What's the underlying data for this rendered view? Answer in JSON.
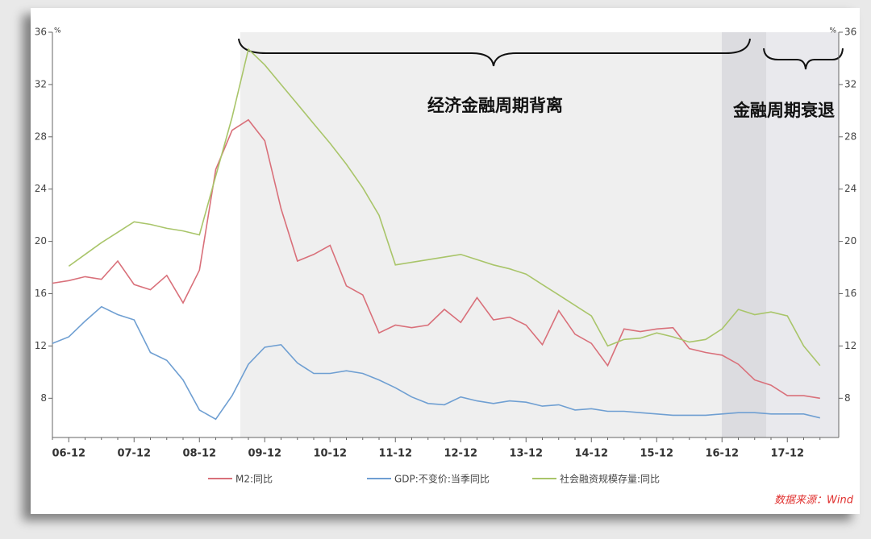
{
  "chart_data": {
    "type": "line",
    "ylabel": "%",
    "y2label": "%",
    "annotations": [
      "经济金融周期背离",
      "金融周期衰退"
    ],
    "source": "数据来源：Wind",
    "categories": [
      null,
      "06-12",
      null,
      null,
      null,
      "07-12",
      null,
      null,
      null,
      "08-12",
      null,
      null,
      null,
      "09-12",
      null,
      null,
      null,
      "10-12",
      null,
      null,
      null,
      "11-12",
      null,
      null,
      null,
      "12-12",
      null,
      null,
      null,
      "13-12",
      null,
      null,
      null,
      "14-12",
      null,
      null,
      null,
      "15-12",
      null,
      null,
      null,
      "16-12",
      null,
      null,
      null,
      "17-12",
      null,
      null
    ],
    "series": [
      {
        "name": "M2:同比",
        "color": "#d9707a",
        "values": [
          16.8,
          17.0,
          17.3,
          17.1,
          18.5,
          16.7,
          16.3,
          17.4,
          15.3,
          17.8,
          25.5,
          28.5,
          29.3,
          27.7,
          22.5,
          18.5,
          19.0,
          19.7,
          16.6,
          15.9,
          13.0,
          13.6,
          13.4,
          13.6,
          14.8,
          13.8,
          15.7,
          14.0,
          14.2,
          13.6,
          12.1,
          14.7,
          12.9,
          12.2,
          10.5,
          13.3,
          13.1,
          13.3,
          13.4,
          11.8,
          11.5,
          11.3,
          10.6,
          9.4,
          9.0,
          8.2,
          8.2,
          8.0
        ]
      },
      {
        "name": "GDP:不变价:当季同比",
        "color": "#6f9fd2",
        "values": [
          12.2,
          12.7,
          13.9,
          15.0,
          14.4,
          14.0,
          11.5,
          10.9,
          9.4,
          7.1,
          6.4,
          8.2,
          10.6,
          11.9,
          12.1,
          10.7,
          9.9,
          9.9,
          10.1,
          9.9,
          9.4,
          8.8,
          8.1,
          7.6,
          7.5,
          8.1,
          7.8,
          7.6,
          7.8,
          7.7,
          7.4,
          7.5,
          7.1,
          7.2,
          7.0,
          7.0,
          6.9,
          6.8,
          6.7,
          6.7,
          6.7,
          6.8,
          6.9,
          6.9,
          6.8,
          6.8,
          6.8,
          6.5
        ]
      },
      {
        "name": "社会融资规模存量:同比",
        "color": "#a9c56a",
        "axis": "y2",
        "values": [
          null,
          18.1,
          19.0,
          19.9,
          20.7,
          21.5,
          21.3,
          21.0,
          20.8,
          20.5,
          25.0,
          29.5,
          34.7,
          33.5,
          32.0,
          30.5,
          29.0,
          27.5,
          25.9,
          24.1,
          22.0,
          18.2,
          18.4,
          18.6,
          18.8,
          19.0,
          18.6,
          18.2,
          17.9,
          17.5,
          16.7,
          15.9,
          15.1,
          14.3,
          12.0,
          12.5,
          12.6,
          13.0,
          12.7,
          12.3,
          12.5,
          13.3,
          14.8,
          14.4,
          14.6,
          14.3,
          12.0,
          10.5
        ]
      }
    ],
    "ylim": [
      5,
      36
    ],
    "yticks": [
      8,
      12,
      16,
      20,
      24,
      28,
      32,
      36
    ],
    "y2lim": [
      5,
      36
    ],
    "y2ticks": [
      8,
      12,
      16,
      20,
      24,
      28,
      32,
      36
    ]
  }
}
